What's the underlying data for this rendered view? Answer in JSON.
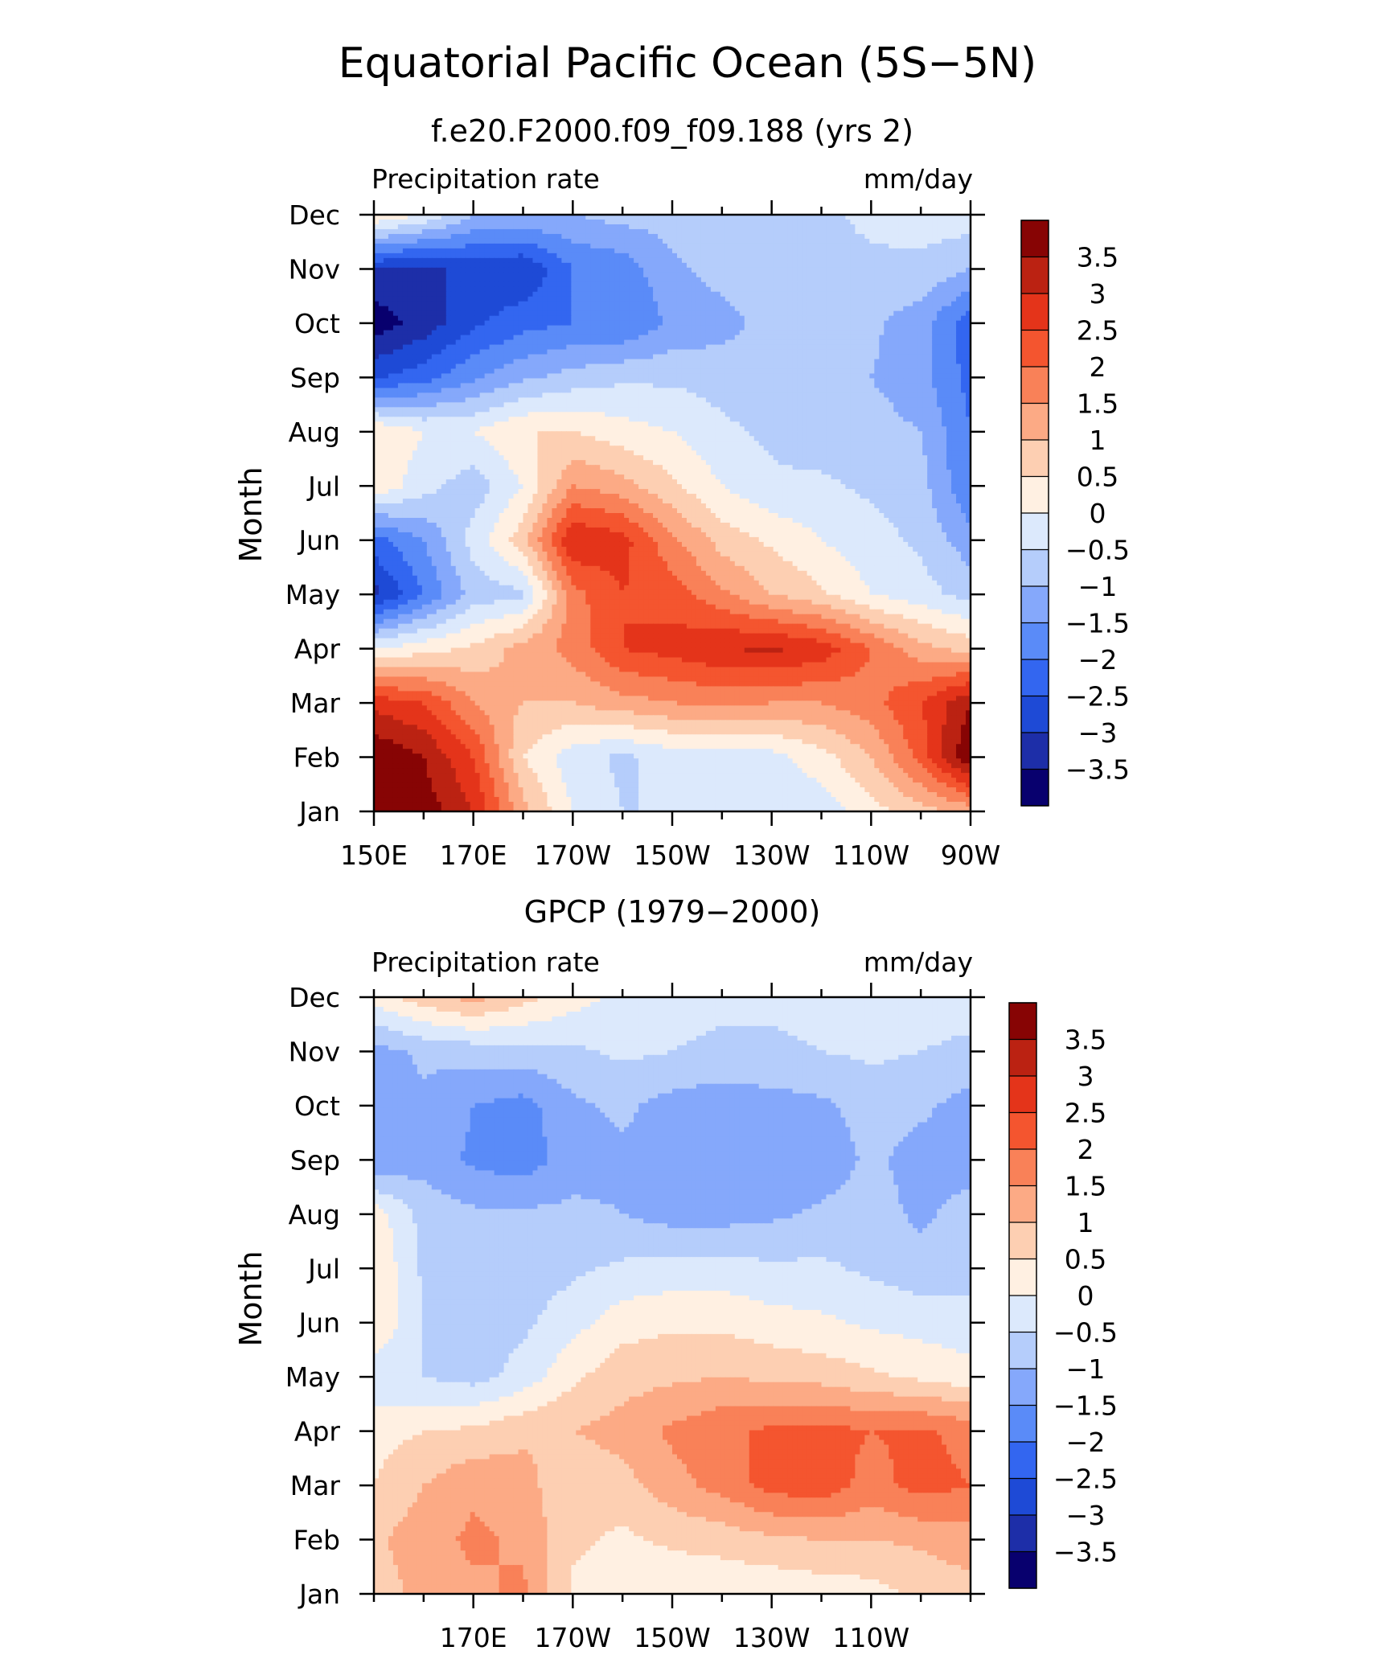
{
  "title": "Equatorial Pacific Ocean (5S−5N)",
  "panel_labels": {
    "top_left": "Precipitation rate",
    "top_right": "mm/day"
  },
  "colors": {
    "levels": [
      "#08006e",
      "#1d2ea8",
      "#1e4ad6",
      "#3366f0",
      "#5a8bf8",
      "#85a8fb",
      "#b5cdfb",
      "#dce9fc",
      "#fff0e2",
      "#fdcfb2",
      "#fcaa85",
      "#f98158",
      "#f4552f",
      "#e4341a",
      "#bb2212",
      "#870404"
    ]
  },
  "chart_data": [
    {
      "type": "heatmap",
      "title": "f.e20.F2000.f09_f09.188 (yrs 2)",
      "ylabel": "Month",
      "y_categories": [
        "Jan",
        "Feb",
        "Mar",
        "Apr",
        "May",
        "Jun",
        "Jul",
        "Aug",
        "Sep",
        "Oct",
        "Nov",
        "Dec"
      ],
      "x_range": [
        150,
        270
      ],
      "x_unit": "degrees east longitude",
      "x_ticks": [
        150,
        170,
        190,
        210,
        230,
        250,
        270
      ],
      "x_tick_labels": [
        "150E",
        "170E",
        "170W",
        "150W",
        "130W",
        "110W",
        "90W"
      ],
      "x": [
        150,
        160,
        170,
        180,
        190,
        200,
        210,
        220,
        230,
        240,
        250,
        260,
        270
      ],
      "contour_levels": [
        -3.5,
        -3,
        -2.5,
        -2,
        -1.5,
        -1,
        -0.5,
        0,
        0.5,
        1,
        1.5,
        2,
        2.5,
        3,
        3.5
      ],
      "colorbar_labels": [
        "3.5",
        "3",
        "2.5",
        "2",
        "1.5",
        "1",
        "0.5",
        "0",
        "−0.5",
        "−1",
        "−1.5",
        "−2",
        "−2.5",
        "−3",
        "−3.5"
      ],
      "values": [
        [
          4.0,
          3.8,
          3.0,
          1.2,
          0.0,
          -0.5,
          -0.5,
          -0.5,
          -0.5,
          -0.3,
          0.3,
          0.8,
          1.2
        ],
        [
          4.0,
          3.5,
          2.5,
          0.5,
          -0.3,
          -0.6,
          -0.3,
          -0.2,
          -0.2,
          0.3,
          1.0,
          2.2,
          4.0
        ],
        [
          2.8,
          2.5,
          1.5,
          1.0,
          1.0,
          1.3,
          1.5,
          1.6,
          1.5,
          1.5,
          1.8,
          2.5,
          3.5
        ],
        [
          0.0,
          0.3,
          0.6,
          1.2,
          1.7,
          2.5,
          2.7,
          3.0,
          3.1,
          2.8,
          2.0,
          1.2,
          0.8
        ],
        [
          -3.2,
          -2.0,
          -0.8,
          -0.6,
          1.8,
          2.5,
          2.3,
          1.6,
          1.0,
          0.6,
          0.0,
          -0.3,
          -0.7
        ],
        [
          -2.2,
          -1.5,
          -0.3,
          0.8,
          3.0,
          2.7,
          1.6,
          0.8,
          0.4,
          0.0,
          -0.3,
          -0.6,
          -1.3
        ],
        [
          0.4,
          -0.3,
          -0.8,
          0.0,
          1.5,
          1.2,
          0.6,
          0.0,
          -0.4,
          -0.4,
          -0.6,
          -0.8,
          -2.0
        ],
        [
          0.5,
          0.0,
          0.0,
          0.5,
          0.5,
          0.2,
          0.0,
          -0.4,
          -0.6,
          -0.8,
          -0.8,
          -1.0,
          -2.0
        ],
        [
          -2.6,
          -2.2,
          -1.6,
          -1.1,
          -0.8,
          -0.6,
          -0.6,
          -0.7,
          -0.8,
          -0.8,
          -1.0,
          -1.3,
          -2.2
        ],
        [
          -3.8,
          -3.3,
          -2.6,
          -2.2,
          -2.0,
          -2.0,
          -1.4,
          -1.2,
          -0.8,
          -0.6,
          -0.9,
          -1.3,
          -2.3
        ],
        [
          -3.0,
          -3.2,
          -2.8,
          -3.0,
          -2.0,
          -1.8,
          -1.1,
          -0.8,
          -0.6,
          -0.6,
          -0.6,
          -0.6,
          -1.0
        ],
        [
          0.5,
          0.0,
          -1.0,
          -1.0,
          -1.0,
          -0.8,
          -0.8,
          -0.6,
          -0.6,
          -0.6,
          -0.4,
          -0.3,
          -0.2
        ]
      ]
    },
    {
      "type": "heatmap",
      "title": "GPCP (1979−2000)",
      "ylabel": "Month",
      "y_categories": [
        "Jan",
        "Feb",
        "Mar",
        "Apr",
        "May",
        "Jun",
        "Jul",
        "Aug",
        "Sep",
        "Oct",
        "Nov",
        "Dec"
      ],
      "x_range": [
        150,
        270
      ],
      "x_unit": "degrees east longitude",
      "x_ticks": [
        170,
        190,
        210,
        230,
        250
      ],
      "x_tick_labels": [
        "170E",
        "170W",
        "150W",
        "130W",
        "110W"
      ],
      "x": [
        150,
        160,
        170,
        180,
        190,
        200,
        210,
        220,
        230,
        240,
        250,
        260,
        270
      ],
      "contour_levels": [
        -3.5,
        -3,
        -2.5,
        -2,
        -1.5,
        -1,
        -0.5,
        0,
        0.5,
        1,
        1.5,
        2,
        2.5,
        3,
        3.5
      ],
      "colorbar_labels": [
        "3.5",
        "3",
        "2.5",
        "2",
        "1.5",
        "1",
        "0.5",
        "0",
        "−0.5",
        "−1",
        "−1.5",
        "−2",
        "−2.5",
        "−3",
        "−3.5"
      ],
      "values": [
        [
          0.7,
          1.2,
          1.4,
          1.6,
          0.4,
          0.2,
          0.1,
          0.1,
          0.1,
          0.2,
          0.3,
          0.6,
          0.8
        ],
        [
          0.9,
          1.3,
          1.6,
          1.4,
          0.6,
          0.4,
          0.6,
          0.7,
          0.9,
          1.0,
          1.0,
          1.1,
          1.3
        ],
        [
          0.5,
          1.0,
          1.4,
          1.2,
          0.6,
          0.8,
          1.3,
          1.7,
          2.2,
          2.3,
          1.8,
          2.2,
          2.0
        ],
        [
          0.3,
          0.5,
          0.6,
          0.9,
          1.0,
          1.2,
          1.6,
          1.9,
          2.1,
          2.2,
          2.0,
          2.1,
          1.8
        ],
        [
          -0.3,
          -0.5,
          -0.7,
          -0.3,
          0.4,
          0.8,
          0.9,
          1.0,
          0.9,
          0.8,
          0.6,
          0.4,
          0.2
        ],
        [
          0.5,
          -0.5,
          -0.8,
          -0.6,
          -0.2,
          0.3,
          0.4,
          0.4,
          0.2,
          0.1,
          -0.1,
          -0.2,
          -0.3
        ],
        [
          0.5,
          -0.6,
          -0.8,
          -0.8,
          -0.6,
          -0.4,
          -0.3,
          -0.3,
          -0.4,
          -0.4,
          -0.6,
          -0.8,
          -0.7
        ],
        [
          0.3,
          -0.7,
          -0.9,
          -0.9,
          -0.9,
          -1.0,
          -1.2,
          -1.2,
          -1.1,
          -0.9,
          -0.8,
          -1.1,
          -0.8
        ],
        [
          -1.5,
          -1.2,
          -1.6,
          -1.8,
          -1.2,
          -1.1,
          -1.2,
          -1.4,
          -1.4,
          -1.3,
          -0.9,
          -1.2,
          -1.2
        ],
        [
          -1.3,
          -1.1,
          -1.5,
          -1.7,
          -1.1,
          -0.9,
          -1.2,
          -1.3,
          -1.2,
          -1.1,
          -0.8,
          -0.9,
          -1.2
        ],
        [
          -1.2,
          -0.9,
          -0.8,
          -0.7,
          -0.6,
          -0.4,
          -0.5,
          -0.6,
          -0.6,
          -0.5,
          -0.4,
          -0.5,
          -0.6
        ],
        [
          0.2,
          0.8,
          1.2,
          0.7,
          0.2,
          -0.1,
          -0.3,
          -0.4,
          -0.4,
          -0.3,
          -0.3,
          -0.3,
          -0.3
        ]
      ]
    }
  ]
}
